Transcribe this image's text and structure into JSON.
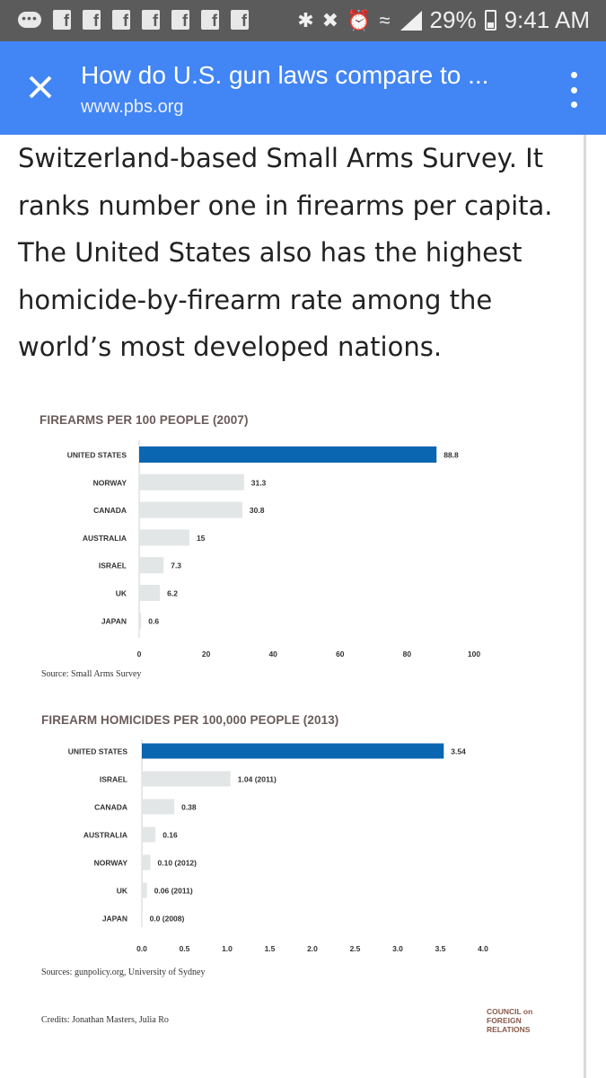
{
  "status_bar": {
    "battery": "29%",
    "time": "9:41 AM",
    "fb_label": "f",
    "msg_label": "•••"
  },
  "toolbar": {
    "title": "How do U.S. gun laws compare to ...",
    "url": "www.pbs.org"
  },
  "article": {
    "lines": [
      "Switzerland-based Small Arms Survey. It",
      "ranks number one in firearms per capita.",
      "The United States also has the highest",
      "homicide-by-firearm rate among the",
      "world’s most developed nations."
    ]
  },
  "chart_data": [
    {
      "type": "bar",
      "orientation": "horizontal",
      "title": "FIREARMS PER 100 PEOPLE (2007)",
      "categories": [
        "UNITED STATES",
        "NORWAY",
        "CANADA",
        "AUSTRALIA",
        "ISRAEL",
        "UK",
        "JAPAN"
      ],
      "values": [
        88.8,
        31.3,
        30.8,
        15,
        7.3,
        6.2,
        0.6
      ],
      "value_labels": [
        "88.8",
        "31.3",
        "30.8",
        "15",
        "7.3",
        "6.2",
        "0.6"
      ],
      "xlim": [
        0,
        100
      ],
      "xticks": [
        0,
        20,
        40,
        60,
        80,
        100
      ],
      "xtick_labels": [
        "0",
        "20",
        "40",
        "60",
        "80",
        "100"
      ],
      "highlight_color": "#0a66b0",
      "bar_color": "#e3e6e6",
      "source": "Source: Small Arms Survey"
    },
    {
      "type": "bar",
      "orientation": "horizontal",
      "title": "FIREARM HOMICIDES PER 100,000 PEOPLE (2013)",
      "categories": [
        "UNITED STATES",
        "ISRAEL",
        "CANADA",
        "AUSTRALIA",
        "NORWAY",
        "UK",
        "JAPAN"
      ],
      "values": [
        3.54,
        1.04,
        0.38,
        0.16,
        0.1,
        0.06,
        0.0
      ],
      "value_labels": [
        "3.54",
        "1.04 (2011)",
        "0.38",
        "0.16",
        "0.10 (2012)",
        "0.06 (2011)",
        "0.0 (2008)"
      ],
      "xlim": [
        0,
        4.0
      ],
      "xticks": [
        0,
        0.5,
        1,
        1.5,
        2,
        2.5,
        3,
        3.5,
        4
      ],
      "xtick_labels": [
        "0.0",
        "0.5",
        "1.0",
        "1.5",
        "2.0",
        "2.5",
        "3.0",
        "3.5",
        "4.0"
      ],
      "highlight_color": "#0a66b0",
      "bar_color": "#e3e6e6",
      "source": "Sources: gunpolicy.org, University of Sydney"
    }
  ],
  "credits": "Credits: Jonathan Masters, Julia Ro",
  "logo": {
    "line1": "COUNCIL on",
    "line2": "FOREIGN",
    "line3": "RELATIONS"
  }
}
